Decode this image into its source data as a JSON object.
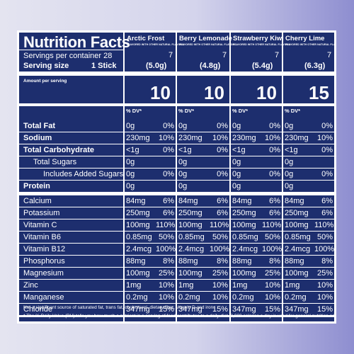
{
  "title": "Nutrition Facts",
  "servings_label": "Servings per container 28",
  "serving_size_label": "Serving size",
  "serving_size_value": "1 Stick",
  "amount_per_serving": "Amount per serving",
  "dv_header": "% DV*",
  "flavors": [
    {
      "name": "Arctic Frost",
      "sub": "FLAVORED WITH OTHER NATURAL FLAVORS",
      "servings": "7",
      "size": "(5.0g)",
      "calories": "10"
    },
    {
      "name": "Berry Lemonade",
      "sub": "FLAVORED WITH OTHER NATURAL FLAVORS",
      "servings": "7",
      "size": "(4.8g)",
      "calories": "10"
    },
    {
      "name": "Strawberry Kiwi",
      "sub": "FLAVORED WITH OTHER NATURAL FLAVORS",
      "servings": "7",
      "size": "(5.4g)",
      "calories": "10"
    },
    {
      "name": "Cherry Lime",
      "sub": "FLAVORED WITH OTHER NATURAL FLAVORS",
      "servings": "7",
      "size": "(6.3g)",
      "calories": "15"
    }
  ],
  "rows": [
    {
      "label": "Total Fat",
      "bold": true,
      "values": [
        [
          "0g",
          "0%"
        ],
        [
          "0g",
          "0%"
        ],
        [
          "0g",
          "0%"
        ],
        [
          "0g",
          "0%"
        ]
      ]
    },
    {
      "label": "Sodium",
      "bold": true,
      "values": [
        [
          "230mg",
          "10%"
        ],
        [
          "230mg",
          "10%"
        ],
        [
          "230mg",
          "10%"
        ],
        [
          "230mg",
          "10%"
        ]
      ]
    },
    {
      "label": "Total Carbohydrate",
      "bold": true,
      "values": [
        [
          "<1g",
          "0%"
        ],
        [
          "<1g",
          "0%"
        ],
        [
          "<1g",
          "0%"
        ],
        [
          "<1g",
          "0%"
        ]
      ]
    },
    {
      "label": "Total Sugars",
      "bold": false,
      "indent": 1,
      "values": [
        [
          "0g",
          ""
        ],
        [
          "0g",
          ""
        ],
        [
          "0g",
          ""
        ],
        [
          "0g",
          ""
        ]
      ]
    },
    {
      "label": "Includes Added Sugars",
      "bold": false,
      "indent": 2,
      "values": [
        [
          "0g",
          "0%"
        ],
        [
          "0g",
          "0%"
        ],
        [
          "0g",
          "0%"
        ],
        [
          "0g",
          "0%"
        ]
      ]
    },
    {
      "label": "Protein",
      "bold": true,
      "values": [
        [
          "0g",
          ""
        ],
        [
          "0g",
          ""
        ],
        [
          "0g",
          ""
        ],
        [
          "0g",
          ""
        ]
      ]
    },
    {
      "label": "Calcium",
      "bold": false,
      "values": [
        [
          "84mg",
          "6%"
        ],
        [
          "84mg",
          "6%"
        ],
        [
          "84mg",
          "6%"
        ],
        [
          "84mg",
          "6%"
        ]
      ]
    },
    {
      "label": "Potassium",
      "bold": false,
      "values": [
        [
          "250mg",
          "6%"
        ],
        [
          "250mg",
          "6%"
        ],
        [
          "250mg",
          "6%"
        ],
        [
          "250mg",
          "6%"
        ]
      ]
    },
    {
      "label": "Vitamin C",
      "bold": false,
      "values": [
        [
          "100mg",
          "110%"
        ],
        [
          "100mg",
          "110%"
        ],
        [
          "100mg",
          "110%"
        ],
        [
          "100mg",
          "110%"
        ]
      ]
    },
    {
      "label": "Vitamin B6",
      "bold": false,
      "values": [
        [
          "0.85mg",
          "50%"
        ],
        [
          "0.85mg",
          "50%"
        ],
        [
          "0.85mg",
          "50%"
        ],
        [
          "0.85mg",
          "50%"
        ]
      ]
    },
    {
      "label": "Vitamin B12",
      "bold": false,
      "values": [
        [
          "2.4mcg",
          "100%"
        ],
        [
          "2.4mcg",
          "100%"
        ],
        [
          "2.4mcg",
          "100%"
        ],
        [
          "2.4mcg",
          "100%"
        ]
      ]
    },
    {
      "label": "Phosphorus",
      "bold": false,
      "values": [
        [
          "88mg",
          "8%"
        ],
        [
          "88mg",
          "8%"
        ],
        [
          "88mg",
          "8%"
        ],
        [
          "88mg",
          "8%"
        ]
      ]
    },
    {
      "label": "Magnesium",
      "bold": false,
      "values": [
        [
          "100mg",
          "25%"
        ],
        [
          "100mg",
          "25%"
        ],
        [
          "100mg",
          "25%"
        ],
        [
          "100mg",
          "25%"
        ]
      ]
    },
    {
      "label": "Zinc",
      "bold": false,
      "values": [
        [
          "1mg",
          "10%"
        ],
        [
          "1mg",
          "10%"
        ],
        [
          "1mg",
          "10%"
        ],
        [
          "1mg",
          "10%"
        ]
      ]
    },
    {
      "label": "Manganese",
      "bold": false,
      "values": [
        [
          "0.2mg",
          "10%"
        ],
        [
          "0.2mg",
          "10%"
        ],
        [
          "0.2mg",
          "10%"
        ],
        [
          "0.2mg",
          "10%"
        ]
      ]
    },
    {
      "label": "Chloride",
      "bold": false,
      "values": [
        [
          "347mg",
          "15%"
        ],
        [
          "347mg",
          "15%"
        ],
        [
          "347mg",
          "15%"
        ],
        [
          "347mg",
          "15%"
        ]
      ]
    }
  ],
  "footnote1": "Not a significant source of saturated fat, trans fat, cholesterol, dietary fiber, vitamin D and iron.",
  "footnote2": "* The % Daily Value (DV) tells you how much a nutrient in a serving of food contributes to a daily diet. 2,000 calories a day is used for general nutrition advice."
}
